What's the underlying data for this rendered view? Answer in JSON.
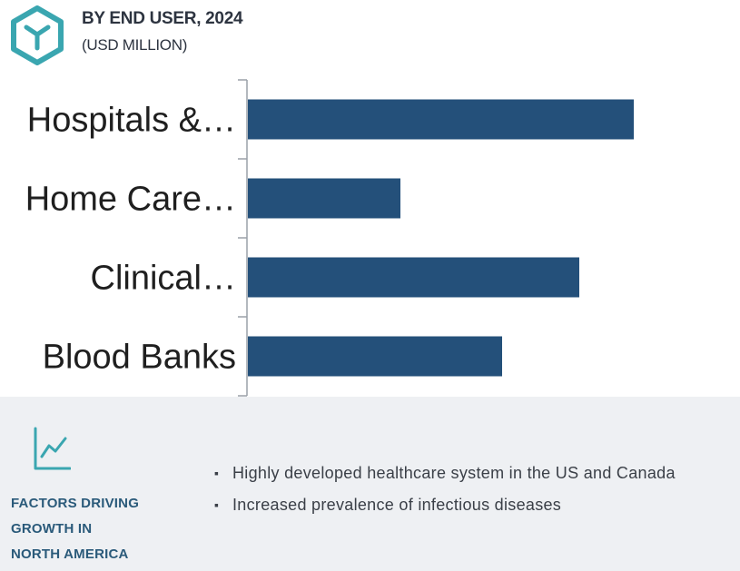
{
  "header": {
    "title": "BY END USER, 2024",
    "subtitle": "(USD MILLION)",
    "icon": "cube-hexagon-icon"
  },
  "colors": {
    "bar": "#24507a",
    "icon": "#3aa6b0",
    "axis": "#9aa1a9",
    "footer_bg": "#eef0f3",
    "footer_title": "#2a5a7a"
  },
  "chart_data": {
    "type": "bar",
    "orientation": "horizontal",
    "title": "BY END USER, 2024",
    "subtitle": "(USD MILLION)",
    "categories": [
      "Hospitals &…",
      "Home Care…",
      "Clinical…",
      "Blood Banks"
    ],
    "values": [
      425,
      168,
      365,
      280
    ],
    "xlim": [
      0,
      540
    ],
    "x_axis_visible": false,
    "grid": false,
    "legend": "none"
  },
  "footer": {
    "icon": "trend-chart-icon",
    "title_lines": [
      "FACTORS DRIVING",
      "GROWTH IN",
      "NORTH AMERICA"
    ],
    "bullets": [
      "Highly developed healthcare system in the US and Canada",
      "Increased prevalence of infectious diseases"
    ]
  }
}
